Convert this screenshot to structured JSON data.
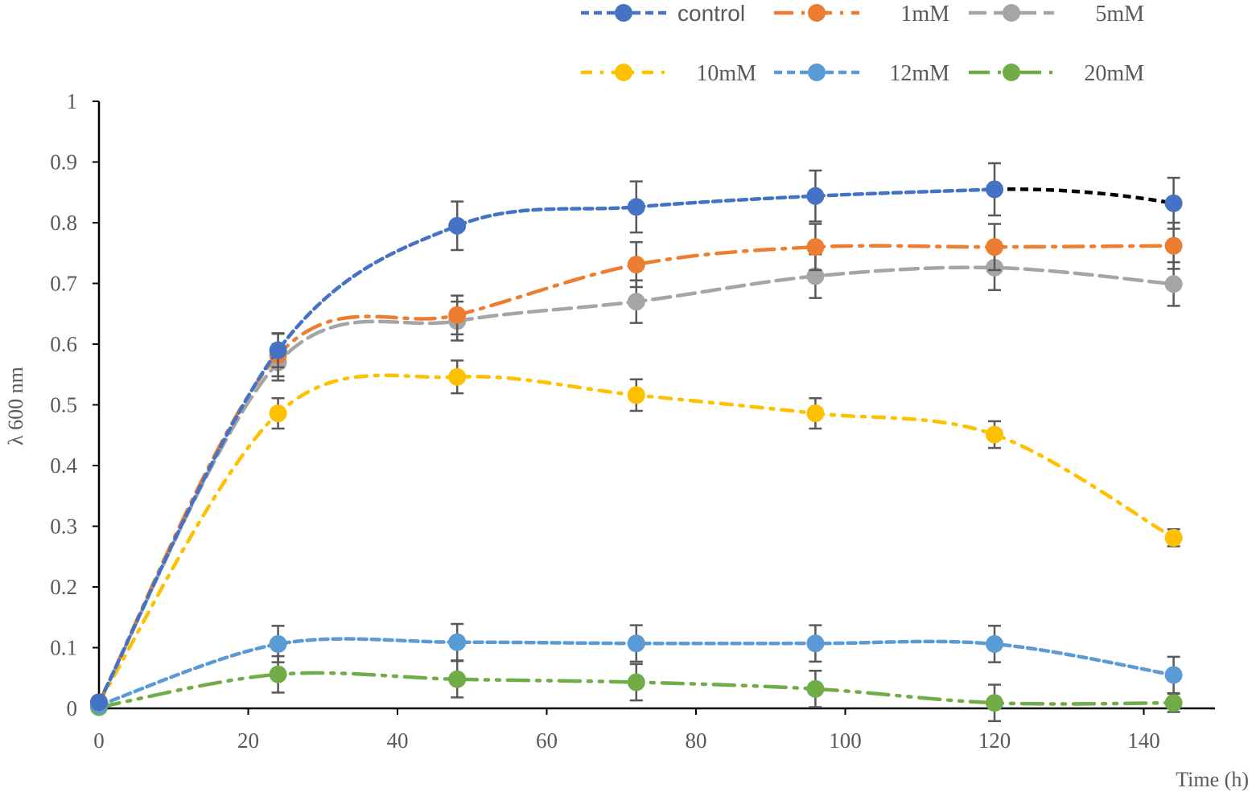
{
  "chart_data": {
    "type": "line",
    "title": "",
    "xlabel": "Time (h)",
    "ylabel": "λ 600 nm",
    "xlim": [
      0,
      150
    ],
    "ylim": [
      0,
      1
    ],
    "x_ticks": [
      "0",
      "20",
      "40",
      "60",
      "80",
      "100",
      "120",
      "140"
    ],
    "y_ticks": [
      "0",
      "0.1",
      "0.2",
      "0.3",
      "0.4",
      "0.5",
      "0.6",
      "0.7",
      "0.8",
      "0.9",
      "1"
    ],
    "x": [
      0,
      24,
      48,
      72,
      96,
      120,
      144
    ],
    "legend_position": "top",
    "series": [
      {
        "name": "control",
        "color": "#4472C4",
        "dash": "dash",
        "values": [
          0.01,
          0.59,
          0.795,
          0.826,
          0.844,
          0.855,
          0.832
        ],
        "errors": [
          0.005,
          0.028,
          0.04,
          0.042,
          0.042,
          0.043,
          0.042
        ],
        "last_segment_color": "#000000"
      },
      {
        "name": "1mM",
        "color": "#ED7D31",
        "dash": "longdashdot",
        "values": [
          0.01,
          0.582,
          0.648,
          0.731,
          0.76,
          0.76,
          0.762
        ],
        "errors": [
          0.005,
          0.035,
          0.032,
          0.037,
          0.038,
          0.038,
          0.038
        ]
      },
      {
        "name": "5mM",
        "color": "#A5A5A5",
        "dash": "longdash",
        "values": [
          0.01,
          0.57,
          0.638,
          0.67,
          0.712,
          0.726,
          0.699
        ],
        "errors": [
          0.005,
          0.03,
          0.032,
          0.035,
          0.036,
          0.037,
          0.036
        ]
      },
      {
        "name": "10mM",
        "color": "#FFC000",
        "dash": "dashdot",
        "values": [
          0.01,
          0.486,
          0.546,
          0.516,
          0.486,
          0.451,
          0.281
        ],
        "errors": [
          0.005,
          0.025,
          0.027,
          0.026,
          0.025,
          0.022,
          0.014
        ]
      },
      {
        "name": "12mM",
        "color": "#5B9BD5",
        "dash": "dash",
        "values": [
          0.005,
          0.106,
          0.109,
          0.107,
          0.107,
          0.106,
          0.055
        ],
        "errors": [
          0.005,
          0.03,
          0.03,
          0.03,
          0.03,
          0.03,
          0.03
        ]
      },
      {
        "name": "20mM",
        "color": "#70AD47",
        "dash": "longdashdotdot",
        "values": [
          0.002,
          0.056,
          0.048,
          0.043,
          0.032,
          0.009,
          0.009
        ],
        "errors": [
          0.003,
          0.03,
          0.03,
          0.03,
          0.03,
          0.03,
          0.015
        ]
      }
    ]
  }
}
